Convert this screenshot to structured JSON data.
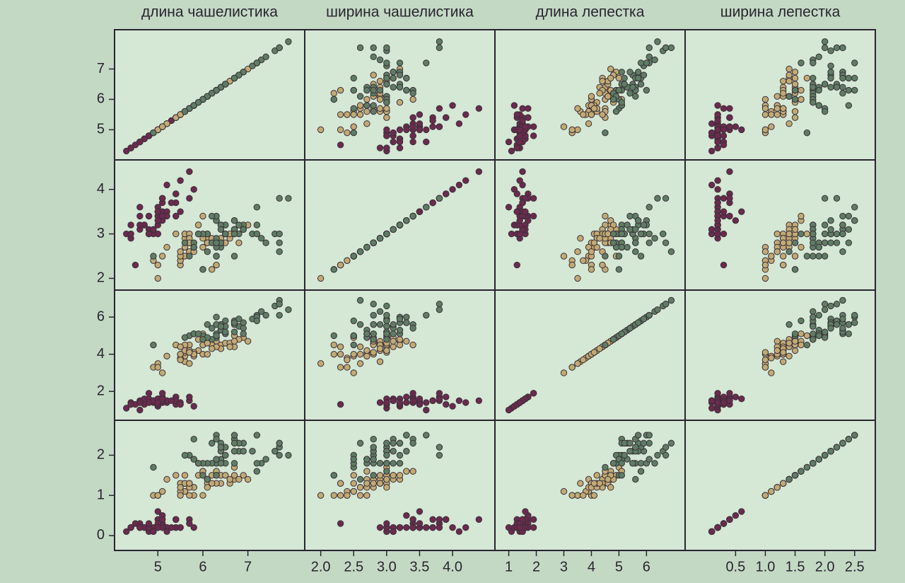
{
  "chart_data": {
    "type": "scatter_matrix",
    "variables": [
      {
        "label": "длина чашелистика",
        "lim": [
          4.1,
          8.2
        ],
        "xticks": [
          5,
          6,
          7
        ],
        "yticks": [
          5,
          6,
          7
        ]
      },
      {
        "label": "ширина чашелистика",
        "lim": [
          1.8,
          4.6
        ],
        "xticks": [
          {
            "value": 2,
            "label": "2.0"
          },
          2.5,
          {
            "value": 3,
            "label": "3.0"
          },
          3.5,
          {
            "value": 4,
            "label": "4.0"
          }
        ],
        "yticks": [
          2,
          3,
          4
        ]
      },
      {
        "label": "длина лепестка",
        "lim": [
          0.6,
          7.3
        ],
        "xticks": [
          1,
          2,
          3,
          4,
          5,
          6
        ],
        "yticks": [
          2,
          4,
          6
        ]
      },
      {
        "label": "ширина лепестка",
        "lim": [
          -0.3,
          2.8
        ],
        "xticks": [
          0.5,
          {
            "value": 1,
            "label": "1.0"
          },
          1.5,
          {
            "value": 2,
            "label": "2.0"
          },
          2.5
        ],
        "yticks": [
          0,
          1,
          2
        ]
      }
    ],
    "groups": [
      {
        "color": "#6b2a4e",
        "points": [
          [
            5.1,
            3.5,
            1.4,
            0.2
          ],
          [
            4.9,
            3.0,
            1.4,
            0.2
          ],
          [
            4.7,
            3.2,
            1.3,
            0.2
          ],
          [
            4.6,
            3.1,
            1.5,
            0.2
          ],
          [
            5.0,
            3.6,
            1.4,
            0.2
          ],
          [
            5.4,
            3.9,
            1.7,
            0.4
          ],
          [
            4.6,
            3.4,
            1.4,
            0.3
          ],
          [
            5.0,
            3.4,
            1.5,
            0.2
          ],
          [
            4.4,
            2.9,
            1.4,
            0.2
          ],
          [
            4.9,
            3.1,
            1.5,
            0.1
          ],
          [
            5.4,
            3.7,
            1.5,
            0.2
          ],
          [
            4.8,
            3.4,
            1.6,
            0.2
          ],
          [
            4.8,
            3.0,
            1.4,
            0.1
          ],
          [
            4.3,
            3.0,
            1.1,
            0.1
          ],
          [
            5.8,
            4.0,
            1.2,
            0.2
          ],
          [
            5.7,
            4.4,
            1.5,
            0.4
          ],
          [
            5.4,
            3.9,
            1.3,
            0.4
          ],
          [
            5.1,
            3.5,
            1.4,
            0.3
          ],
          [
            5.7,
            3.8,
            1.7,
            0.3
          ],
          [
            5.1,
            3.8,
            1.5,
            0.3
          ],
          [
            5.4,
            3.4,
            1.7,
            0.2
          ],
          [
            5.1,
            3.7,
            1.5,
            0.4
          ],
          [
            4.6,
            3.6,
            1.0,
            0.2
          ],
          [
            5.1,
            3.3,
            1.7,
            0.5
          ],
          [
            4.8,
            3.4,
            1.9,
            0.2
          ],
          [
            5.0,
            3.0,
            1.6,
            0.2
          ],
          [
            5.0,
            3.4,
            1.6,
            0.4
          ],
          [
            5.2,
            3.5,
            1.5,
            0.2
          ],
          [
            5.2,
            3.4,
            1.4,
            0.2
          ],
          [
            4.7,
            3.2,
            1.6,
            0.2
          ],
          [
            4.8,
            3.1,
            1.6,
            0.2
          ],
          [
            5.4,
            3.4,
            1.5,
            0.4
          ],
          [
            5.2,
            4.1,
            1.5,
            0.1
          ],
          [
            5.5,
            4.2,
            1.4,
            0.2
          ],
          [
            4.9,
            3.1,
            1.5,
            0.1
          ],
          [
            5.0,
            3.2,
            1.2,
            0.2
          ],
          [
            5.5,
            3.5,
            1.3,
            0.2
          ],
          [
            4.9,
            3.1,
            1.5,
            0.1
          ],
          [
            4.4,
            3.0,
            1.3,
            0.2
          ],
          [
            5.1,
            3.4,
            1.5,
            0.2
          ],
          [
            5.0,
            3.5,
            1.3,
            0.3
          ],
          [
            4.5,
            2.3,
            1.3,
            0.3
          ],
          [
            4.4,
            3.2,
            1.3,
            0.2
          ],
          [
            5.0,
            3.5,
            1.6,
            0.6
          ],
          [
            5.1,
            3.8,
            1.9,
            0.4
          ],
          [
            4.8,
            3.0,
            1.4,
            0.3
          ],
          [
            5.1,
            3.8,
            1.6,
            0.2
          ],
          [
            4.6,
            3.2,
            1.4,
            0.2
          ],
          [
            5.3,
            3.7,
            1.5,
            0.2
          ],
          [
            5.0,
            3.3,
            1.4,
            0.2
          ]
        ]
      },
      {
        "color": "#c2aa74",
        "points": [
          [
            7.0,
            3.2,
            4.7,
            1.4
          ],
          [
            6.4,
            3.2,
            4.5,
            1.5
          ],
          [
            6.9,
            3.1,
            4.9,
            1.5
          ],
          [
            5.5,
            2.3,
            4.0,
            1.3
          ],
          [
            6.5,
            2.8,
            4.6,
            1.5
          ],
          [
            5.7,
            2.8,
            4.5,
            1.3
          ],
          [
            6.3,
            3.3,
            4.7,
            1.6
          ],
          [
            4.9,
            2.4,
            3.3,
            1.0
          ],
          [
            6.6,
            2.9,
            4.6,
            1.3
          ],
          [
            5.2,
            2.7,
            3.9,
            1.4
          ],
          [
            5.0,
            2.0,
            3.5,
            1.0
          ],
          [
            5.9,
            3.0,
            4.2,
            1.5
          ],
          [
            6.0,
            2.2,
            4.0,
            1.0
          ],
          [
            6.1,
            2.9,
            4.7,
            1.4
          ],
          [
            5.6,
            2.9,
            3.6,
            1.3
          ],
          [
            6.7,
            3.1,
            4.4,
            1.4
          ],
          [
            5.6,
            3.0,
            4.5,
            1.5
          ],
          [
            5.8,
            2.7,
            4.1,
            1.0
          ],
          [
            6.2,
            2.2,
            4.5,
            1.5
          ],
          [
            5.6,
            2.5,
            3.9,
            1.1
          ],
          [
            5.9,
            3.2,
            4.8,
            1.8
          ],
          [
            6.1,
            2.8,
            4.0,
            1.3
          ],
          [
            6.3,
            2.5,
            4.9,
            1.5
          ],
          [
            6.1,
            2.8,
            4.7,
            1.2
          ],
          [
            6.4,
            2.9,
            4.3,
            1.3
          ],
          [
            6.6,
            3.0,
            4.4,
            1.4
          ],
          [
            6.8,
            2.8,
            4.8,
            1.4
          ],
          [
            6.7,
            3.0,
            5.0,
            1.7
          ],
          [
            6.0,
            2.9,
            4.5,
            1.5
          ],
          [
            5.7,
            2.6,
            3.5,
            1.0
          ],
          [
            5.5,
            2.4,
            3.8,
            1.1
          ],
          [
            5.5,
            2.4,
            3.7,
            1.0
          ],
          [
            5.8,
            2.7,
            3.9,
            1.2
          ],
          [
            6.0,
            2.7,
            5.1,
            1.6
          ],
          [
            5.4,
            3.0,
            4.5,
            1.5
          ],
          [
            6.0,
            3.4,
            4.5,
            1.6
          ],
          [
            6.7,
            3.1,
            4.7,
            1.5
          ],
          [
            6.3,
            2.3,
            4.4,
            1.3
          ],
          [
            5.6,
            3.0,
            4.1,
            1.3
          ],
          [
            5.5,
            2.5,
            4.0,
            1.3
          ],
          [
            5.5,
            2.6,
            4.4,
            1.2
          ],
          [
            6.1,
            3.0,
            4.6,
            1.4
          ],
          [
            5.8,
            2.6,
            4.0,
            1.2
          ],
          [
            5.0,
            2.3,
            3.3,
            1.0
          ],
          [
            5.6,
            2.7,
            4.2,
            1.3
          ],
          [
            5.7,
            3.0,
            4.2,
            1.2
          ],
          [
            5.7,
            2.9,
            4.2,
            1.3
          ],
          [
            6.2,
            2.9,
            4.3,
            1.3
          ],
          [
            5.1,
            2.5,
            3.0,
            1.1
          ],
          [
            5.7,
            2.8,
            4.1,
            1.3
          ]
        ]
      },
      {
        "color": "#5e7d64",
        "points": [
          [
            6.3,
            3.3,
            6.0,
            2.5
          ],
          [
            5.8,
            2.7,
            5.1,
            1.9
          ],
          [
            7.1,
            3.0,
            5.9,
            2.1
          ],
          [
            6.3,
            2.9,
            5.6,
            1.8
          ],
          [
            6.5,
            3.0,
            5.8,
            2.2
          ],
          [
            7.6,
            3.0,
            6.6,
            2.1
          ],
          [
            4.9,
            2.5,
            4.5,
            1.7
          ],
          [
            7.3,
            2.9,
            6.3,
            1.8
          ],
          [
            6.7,
            2.5,
            5.8,
            1.8
          ],
          [
            7.2,
            3.6,
            6.1,
            2.5
          ],
          [
            6.5,
            3.2,
            5.1,
            2.0
          ],
          [
            6.4,
            2.7,
            5.3,
            1.9
          ],
          [
            6.8,
            3.0,
            5.5,
            2.1
          ],
          [
            5.7,
            2.5,
            5.0,
            2.0
          ],
          [
            5.8,
            2.8,
            5.1,
            2.4
          ],
          [
            6.4,
            3.2,
            5.3,
            2.3
          ],
          [
            6.5,
            3.0,
            5.5,
            1.8
          ],
          [
            7.7,
            3.8,
            6.7,
            2.2
          ],
          [
            7.7,
            2.6,
            6.9,
            2.3
          ],
          [
            6.0,
            2.2,
            5.0,
            1.5
          ],
          [
            6.9,
            3.2,
            5.7,
            2.3
          ],
          [
            5.6,
            2.8,
            4.9,
            2.0
          ],
          [
            7.7,
            2.8,
            6.7,
            2.0
          ],
          [
            6.3,
            2.7,
            4.9,
            1.8
          ],
          [
            6.7,
            3.3,
            5.7,
            2.1
          ],
          [
            7.2,
            3.2,
            6.0,
            1.8
          ],
          [
            6.2,
            2.8,
            4.8,
            1.8
          ],
          [
            6.1,
            3.0,
            4.9,
            1.8
          ],
          [
            6.4,
            2.8,
            5.6,
            2.1
          ],
          [
            7.2,
            3.0,
            5.8,
            1.6
          ],
          [
            7.4,
            2.8,
            6.1,
            1.9
          ],
          [
            7.9,
            3.8,
            6.4,
            2.0
          ],
          [
            6.4,
            2.8,
            5.6,
            2.2
          ],
          [
            6.3,
            2.8,
            5.1,
            1.5
          ],
          [
            6.1,
            2.6,
            5.6,
            1.4
          ],
          [
            7.7,
            3.0,
            6.1,
            2.3
          ],
          [
            6.3,
            3.4,
            5.6,
            2.4
          ],
          [
            6.4,
            3.1,
            5.5,
            1.8
          ],
          [
            6.0,
            3.0,
            4.8,
            1.8
          ],
          [
            6.9,
            3.1,
            5.4,
            2.1
          ],
          [
            6.7,
            3.1,
            5.6,
            2.4
          ],
          [
            6.9,
            3.1,
            5.1,
            2.3
          ],
          [
            5.8,
            2.7,
            5.1,
            1.9
          ],
          [
            6.8,
            3.2,
            5.9,
            2.3
          ],
          [
            6.7,
            3.3,
            5.7,
            2.5
          ],
          [
            6.7,
            3.0,
            5.2,
            2.3
          ],
          [
            6.3,
            2.5,
            5.0,
            1.9
          ],
          [
            6.5,
            3.0,
            5.2,
            2.0
          ],
          [
            6.2,
            3.4,
            5.4,
            2.3
          ],
          [
            5.9,
            3.0,
            5.1,
            1.8
          ]
        ]
      }
    ]
  }
}
